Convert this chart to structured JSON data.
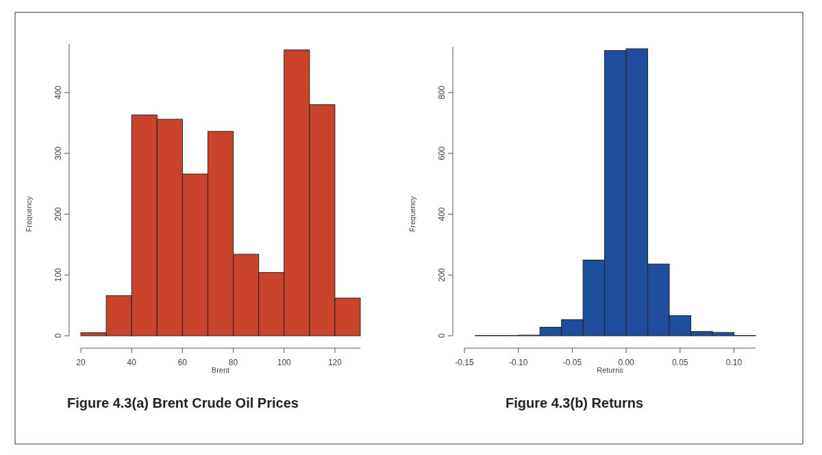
{
  "chart_data": [
    {
      "type": "histogram",
      "title": "Figure 4.3(a) Brent Crude Oil Prices",
      "xlabel": "Brent",
      "ylabel": "Frequency",
      "color": "#c9432b",
      "bins": [
        20,
        30,
        40,
        50,
        60,
        70,
        80,
        90,
        100,
        110,
        120,
        130
      ],
      "values": [
        5,
        66,
        363,
        356,
        266,
        336,
        134,
        104,
        470,
        380,
        62
      ],
      "xlim": [
        20,
        130
      ],
      "xticks": [
        20,
        40,
        60,
        80,
        100,
        120
      ],
      "ylim": [
        0,
        480
      ],
      "yticks": [
        0,
        100,
        200,
        300,
        400
      ]
    },
    {
      "type": "histogram",
      "title": "Figure 4.3(b) Returns",
      "xlabel": "Returns",
      "ylabel": "Frequency",
      "color": "#1f4e9c",
      "bins": [
        -0.14,
        -0.12,
        -0.1,
        -0.08,
        -0.06,
        -0.04,
        -0.02,
        0,
        0.02,
        0.04,
        0.06,
        0.08,
        0.1,
        0.12
      ],
      "values": [
        1,
        1,
        2,
        28,
        53,
        249,
        938,
        944,
        236,
        66,
        14,
        11,
        1
      ],
      "xlim": [
        -0.15,
        0.12
      ],
      "xticks": [
        {
          "value": -0.15,
          "label": "-0.15"
        },
        {
          "value": -0.1,
          "label": "-0.10"
        },
        {
          "value": -0.05,
          "label": "-0.05"
        },
        {
          "value": 0,
          "label": "0.00"
        },
        {
          "value": 0.05,
          "label": "0.05"
        },
        {
          "value": 0.1,
          "label": "0.10"
        }
      ],
      "ylim": [
        0,
        950
      ],
      "yticks": [
        0,
        200,
        400,
        600,
        800
      ]
    }
  ]
}
